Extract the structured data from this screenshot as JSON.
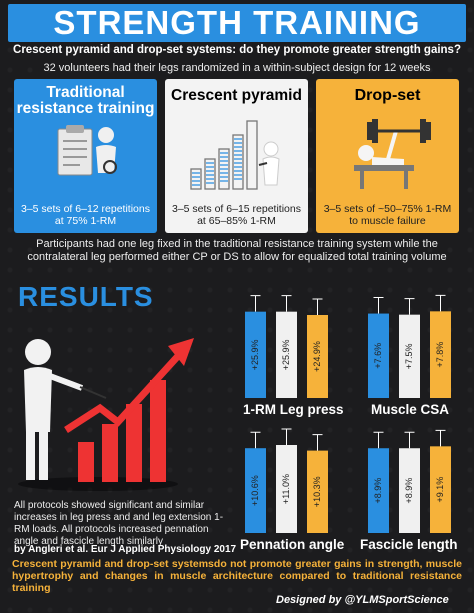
{
  "header": {
    "title": "STRENGTH TRAINING",
    "subtitle": "Crescent pyramid and drop-set systems: do they promote greater strength gains?",
    "design_note": "32 volunteers had their legs randomized in a within-subject design for 12 weeks"
  },
  "protocols": [
    {
      "title": "Traditional resistance training",
      "description": "3–5 sets of 6–12 repetitions at 75% 1-RM",
      "color": "#2a8fe0"
    },
    {
      "title": "Crescent pyramid",
      "description": "3–5 sets of 6–15 repetitions at 65–85% 1-RM",
      "color": "#f3f3f3"
    },
    {
      "title": "Drop-set",
      "description": "3–5 sets of ~50–75% 1-RM to muscle failure",
      "color": "#f6b23a"
    }
  ],
  "participants_note": "Participants had one leg fixed in the traditional resistance training system while the contralateral leg performed either CP or DS to allow for equalized total training volume",
  "results": {
    "title": "RESULTS",
    "summary": "All protocols showed significant and similar increases in leg press and and leg extension 1-RM loads. All protocols increased pennation angle and fascicle length similarly"
  },
  "colors": {
    "traditional": "#2a8fe0",
    "crescent_pyramid": "#f0f0f0",
    "drop_set": "#f6b23a",
    "accent": "#2a8fe0"
  },
  "chart_data": [
    {
      "type": "bar",
      "title": "1-RM Leg press",
      "categories": [
        "Traditional",
        "Crescent pyramid",
        "Drop-set"
      ],
      "values": [
        25.9,
        25.9,
        24.9
      ],
      "data_labels": [
        "+25.9%",
        "+25.9%",
        "+24.9%"
      ],
      "ylim": [
        0,
        30
      ]
    },
    {
      "type": "bar",
      "title": "Muscle CSA",
      "categories": [
        "Traditional",
        "Crescent pyramid",
        "Drop-set"
      ],
      "values": [
        7.6,
        7.5,
        7.8
      ],
      "data_labels": [
        "+7.6%",
        "+7.5%",
        "+7.8%"
      ],
      "ylim": [
        0,
        9
      ]
    },
    {
      "type": "bar",
      "title": "Pennation angle",
      "categories": [
        "Traditional",
        "Crescent pyramid",
        "Drop-set"
      ],
      "values": [
        10.6,
        11.0,
        10.3
      ],
      "data_labels": [
        "+10.6%",
        "+11.0%",
        "+10.3%"
      ],
      "ylim": [
        0,
        12.5
      ]
    },
    {
      "type": "bar",
      "title": "Fascicle length",
      "categories": [
        "Traditional",
        "Crescent pyramid",
        "Drop-set"
      ],
      "values": [
        8.9,
        8.9,
        9.1
      ],
      "data_labels": [
        "+8.9%",
        "+8.9%",
        "+9.1%"
      ],
      "ylim": [
        0,
        10.5
      ]
    }
  ],
  "citation": "by Angleri et al. Eur J Applied Physiology 2017",
  "conclusion": "Crescent pyramid and drop-set systemsdo not promote greater gains in strength, muscle hypertrophy and changes in muscle architecture compared to traditional resistance training",
  "credit": "Designed by @YLMSportScience"
}
